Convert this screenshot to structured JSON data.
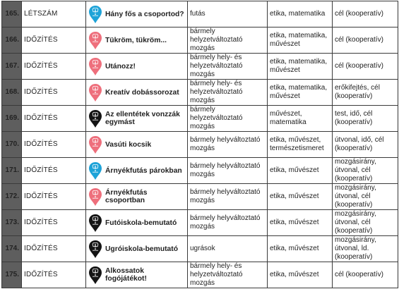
{
  "rows": [
    {
      "number": "165.",
      "category": "LÉTSZÁM",
      "icon": "blue-pin-icon",
      "name": "Hány fős a csoportod?",
      "activity": "futás",
      "subjects": "etika, matematika",
      "goals": "cél (kooperatív)"
    },
    {
      "number": "166.",
      "category": "IDŐZÍTÉS",
      "icon": "pink-pin-icon",
      "name": "Tükröm, tükröm...",
      "activity": "bármely helyzetváltoztató mozgás",
      "subjects": "etika, matematika, művészet",
      "goals": "cél (kooperatív)"
    },
    {
      "number": "167.",
      "category": "IDŐZÍTÉS",
      "icon": "pink-pin-icon",
      "name": "Utánozz!",
      "activity": "bármely hely- és helyzetváltoztató mozgás",
      "subjects": "etika, matematika, művészet",
      "goals": "cél (kooperatív)"
    },
    {
      "number": "168.",
      "category": "IDŐZÍTÉS",
      "icon": "pink-pin-icon",
      "name": "Kreatív dobássorozat",
      "activity": "bármely hely- és helyzetváltoztató mozgás",
      "subjects": "etika, matematika, művészet",
      "goals": "erőkifejtés, cél (kooperatív)"
    },
    {
      "number": "169.",
      "category": "IDŐZÍTÉS",
      "icon": "black-pin-icon",
      "name": "Az ellentétek vonzzák egymást",
      "activity": "bármely helyzetváltoztató mozgás",
      "subjects": "művészet, matematika",
      "goals": "test, idő, cél (kooperatív)"
    },
    {
      "number": "170.",
      "category": "IDŐZÍTÉS",
      "icon": "pink-pin-icon",
      "name": "Vasúti kocsik",
      "activity": "bármely helyváltoztató mozgás",
      "subjects": "etika, művészet, természetismeret",
      "goals": "útvonal, idő, cél (kooperatív)"
    },
    {
      "number": "171.",
      "category": "IDŐZÍTÉS",
      "icon": "blue-pin-icon",
      "name": "Árnyékfutás párokban",
      "activity": "bármely helyváltoztató mozgás",
      "subjects": "etika, művészet",
      "goals": "mozgásirány, útvonal, cél (kooperatív)"
    },
    {
      "number": "172.",
      "category": "IDŐZÍTÉS",
      "icon": "pink-pin-icon",
      "name": "Árnyékfutás csoportban",
      "activity": "bármely helyváltoztató mozgás",
      "subjects": "etika, művészet",
      "goals": "mozgásirány, útvonal, cél (kooperatív)"
    },
    {
      "number": "173.",
      "category": "IDŐZÍTÉS",
      "icon": "black-pin-icon",
      "name": "Futóiskola-bemutató",
      "activity": "bármely helyváltoztató mozgás",
      "subjects": "etika, művészet",
      "goals": "mozgásirány, útvonal, cél (kooperatív)"
    },
    {
      "number": "174.",
      "category": "IDŐZÍTÉS",
      "icon": "black-pin-icon",
      "name": "Ugróiskola-bemutató",
      "activity": "ugrások",
      "subjects": "etika, művészet",
      "goals": "mozgásirány, útvonal, ld. (kooperatív)"
    },
    {
      "number": "175.",
      "category": "IDŐZÍTÉS",
      "icon": "black-pin-icon",
      "name": "Alkossatok fogójátékot!",
      "activity": "bármely hely- és helyzetváltoztató mozgás",
      "subjects": "etika, művészet",
      "goals": "cél (kooperatív)"
    }
  ],
  "colors": {
    "number_bg": "#5e5e5e",
    "blue_pin": "#1ea3d8",
    "pink_pin": "#ee6f7c",
    "black_pin": "#141414"
  }
}
